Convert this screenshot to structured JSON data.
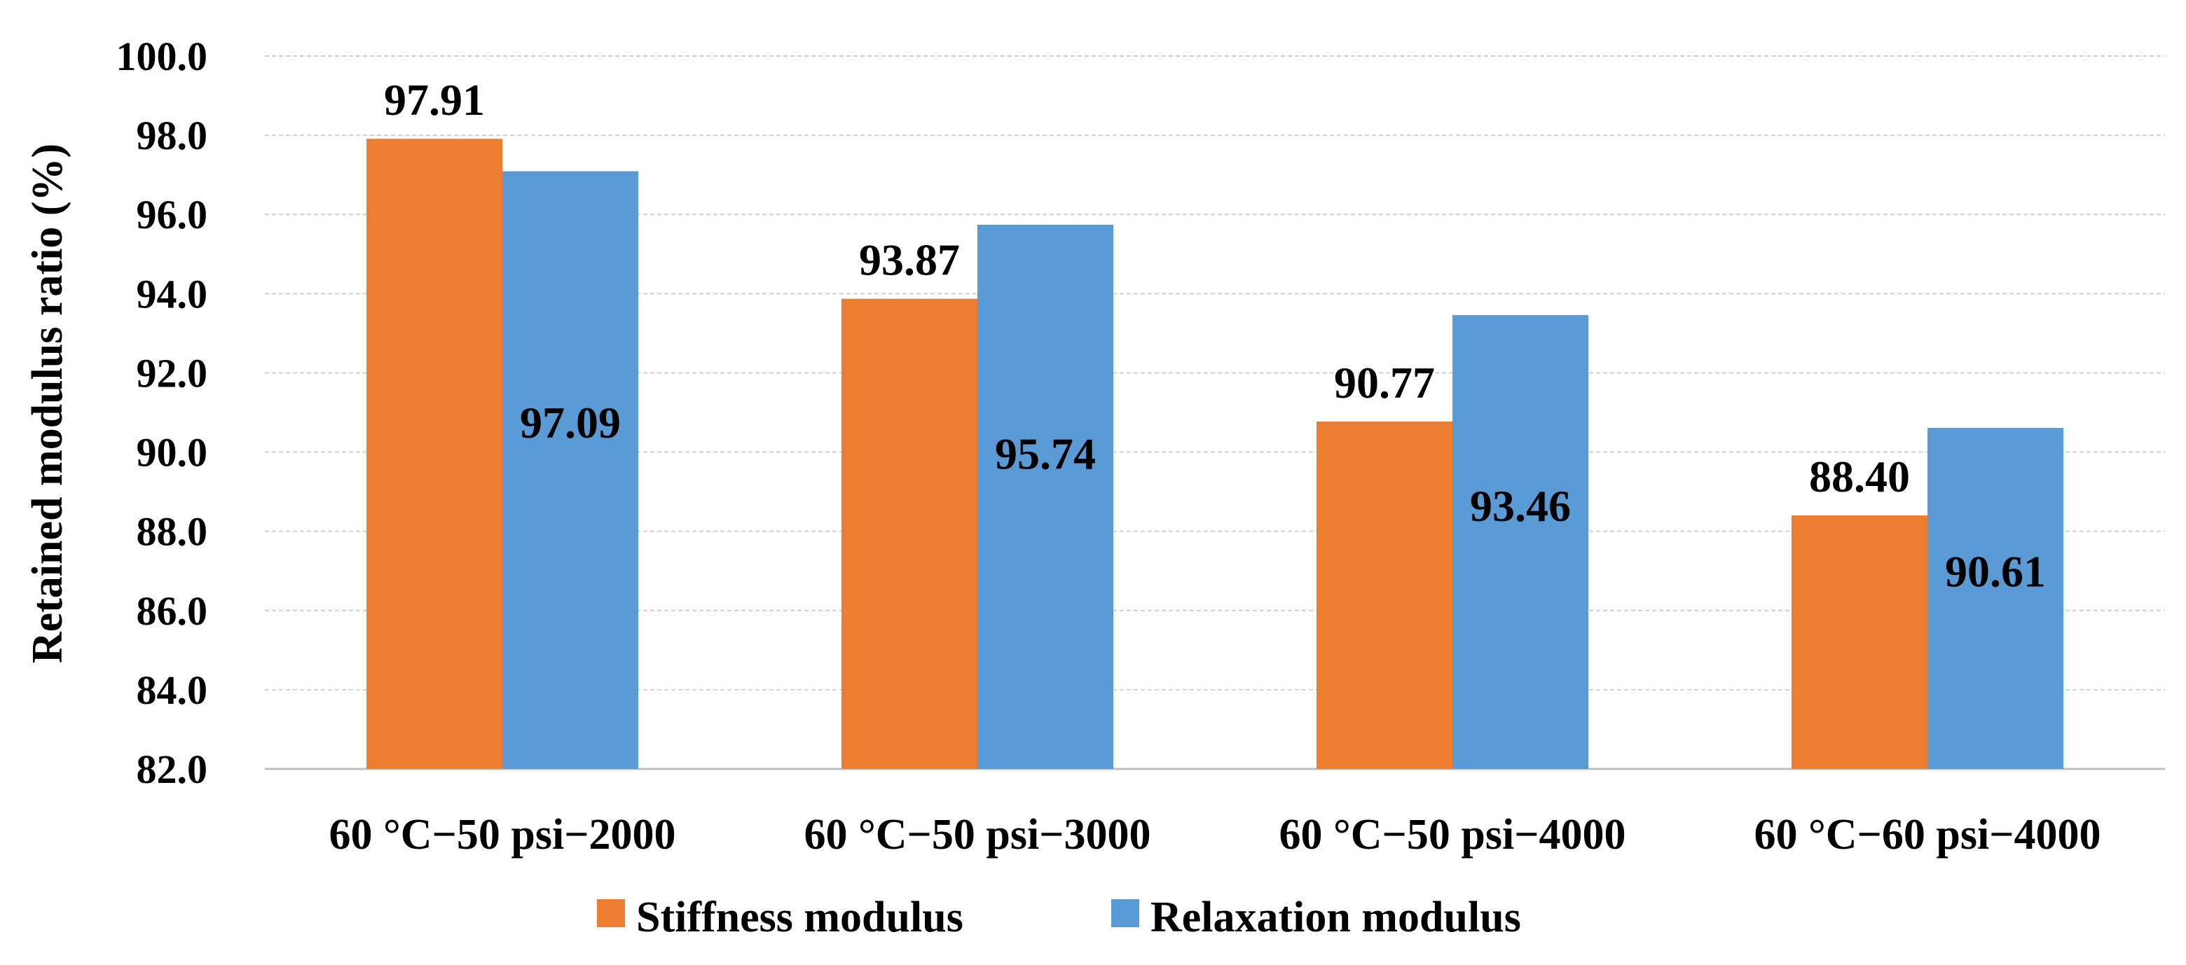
{
  "chart_data": {
    "type": "bar",
    "title": "",
    "xlabel": "",
    "ylabel": "Retained modulus ratio (%)",
    "ylim": [
      82.0,
      100.0
    ],
    "ytick_step": 2.0,
    "ytick_labels": [
      "82.0",
      "84.0",
      "86.0",
      "88.0",
      "90.0",
      "92.0",
      "94.0",
      "96.0",
      "98.0",
      "100.0"
    ],
    "grid": true,
    "legend_position": "bottom",
    "categories": [
      "60 °C−50 psi−2000",
      "60 °C−50 psi−3000",
      "60 °C−50 psi−4000",
      "60 °C−60 psi−4000"
    ],
    "series": [
      {
        "name": "Stiffness modulus",
        "color": "#ED7D31",
        "values": [
          97.91,
          93.87,
          90.77,
          88.4
        ],
        "labels": [
          "97.91",
          "93.87",
          "90.77",
          "88.40"
        ],
        "label_position": "above"
      },
      {
        "name": "Relaxation modulus",
        "color": "#5B9BD5",
        "values": [
          97.09,
          95.74,
          93.46,
          90.61
        ],
        "labels": [
          "97.09",
          "95.74",
          "93.46",
          "90.61"
        ],
        "label_position": "inside"
      }
    ]
  }
}
